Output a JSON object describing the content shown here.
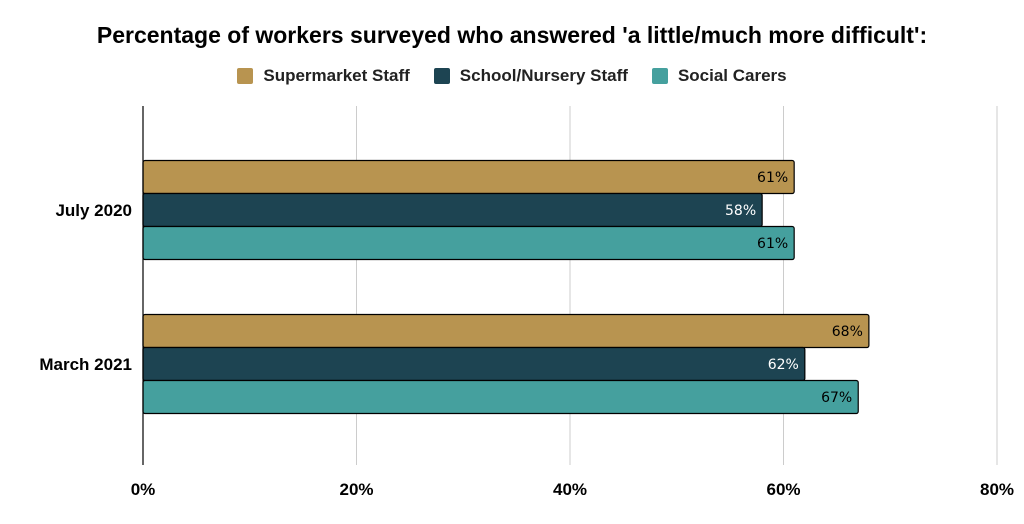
{
  "chart_data": {
    "type": "bar",
    "orientation": "horizontal",
    "title": "Percentage of workers surveyed who answered 'a little/much more difficult':",
    "categories": [
      "July 2020",
      "March 2021"
    ],
    "series": [
      {
        "name": "Supermarket Staff",
        "color": "#B89450",
        "label_color": "#000000",
        "values": [
          61,
          68
        ],
        "labels": [
          "61%",
          "68%"
        ]
      },
      {
        "name": "School/Nursery Staff",
        "color": "#1D4452",
        "label_color": "#ffffff",
        "values": [
          58,
          62
        ],
        "labels": [
          "58%",
          "62%"
        ]
      },
      {
        "name": "Social Carers",
        "color": "#45A09E",
        "label_color": "#000000",
        "values": [
          61,
          67
        ],
        "labels": [
          "61%",
          "67%"
        ]
      }
    ],
    "xlim": [
      0,
      80
    ],
    "xticks": [
      0,
      20,
      40,
      60,
      80
    ],
    "xtick_labels": [
      "0%",
      "20%",
      "40%",
      "60%",
      "80%"
    ],
    "grid": true,
    "legend_position": "top"
  }
}
